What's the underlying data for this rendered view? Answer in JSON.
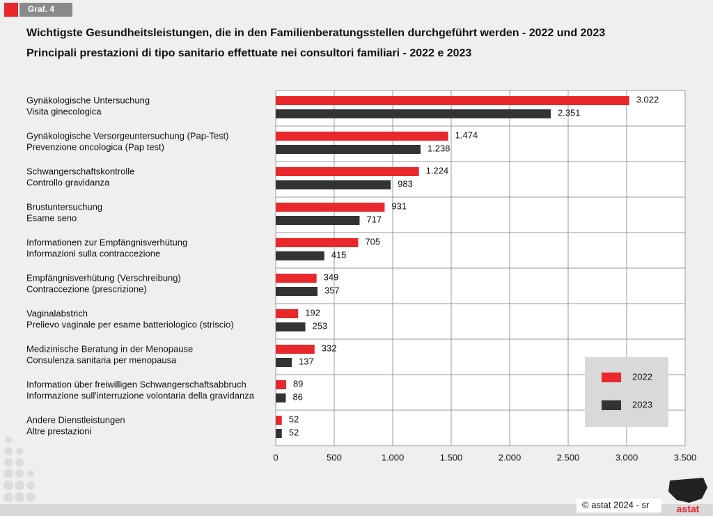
{
  "badge": "Graf. 4",
  "footer": "© astat 2024 - sr",
  "logo": "astat",
  "chart_data": {
    "type": "bar",
    "orientation": "horizontal",
    "title": "Wichtigste Gesundheitsleistungen, die in den Familienberatungsstellen durchgeführt werden - 2022 und 2023",
    "subtitle": "Principali prestazioni di tipo sanitario effettuate nei consultori familiari - 2022 e 2023",
    "categories": [
      [
        "Gynäkologische Untersuchung",
        "Visita ginecologica"
      ],
      [
        "Gynäkologische Versorgeuntersuchung (Pap-Test)",
        "Prevenzione oncologica (Pap test)"
      ],
      [
        "Schwangerschaftskontrolle",
        "Controllo gravidanza"
      ],
      [
        "Brustuntersuchung",
        "Esame seno"
      ],
      [
        "Informationen zur Empfängnisverhütung",
        "Informazioni sulla contraccezione"
      ],
      [
        "Empfängnisverhütung (Verschreibung)",
        "Contraccezione (prescrizione)"
      ],
      [
        "Vaginalabstrich",
        "Prelievo vaginale per esame batteriologico (striscio)"
      ],
      [
        "Medizinische Beratung in der Menopause",
        "Consulenza sanitaria per menopausa"
      ],
      [
        "Information über freiwilligen Schwangerschaftsabbruch",
        "Informazione sull'interruzione volontaria della gravidanza"
      ],
      [
        "Andere Dienstleistungen",
        "Altre prestazioni"
      ]
    ],
    "series": [
      {
        "name": "2022",
        "color": "#e8282d",
        "values": [
          3022,
          1474,
          1224,
          931,
          705,
          349,
          192,
          332,
          89,
          52
        ],
        "value_labels": [
          "3.022",
          "1.474",
          "1.224",
          "931",
          "705",
          "349",
          "192",
          "332",
          "89",
          "52"
        ]
      },
      {
        "name": "2023",
        "color": "#333333",
        "values": [
          2351,
          1238,
          983,
          717,
          415,
          357,
          253,
          137,
          86,
          52
        ],
        "value_labels": [
          "2.351",
          "1.238",
          "983",
          "717",
          "415",
          "357",
          "253",
          "137",
          "86",
          "52"
        ]
      }
    ],
    "xlim": [
      0,
      3500
    ],
    "xticks": [
      0,
      500,
      {
        "value": 1000,
        "label": "1.000"
      },
      {
        "value": 1500,
        "label": "1.500"
      },
      {
        "value": 2000,
        "label": "2.000"
      },
      {
        "value": 2500,
        "label": "2.500"
      },
      {
        "value": 3000,
        "label": "3.000"
      },
      {
        "value": 3500,
        "label": "3.500"
      }
    ],
    "grid": true,
    "legend": "lower right"
  }
}
